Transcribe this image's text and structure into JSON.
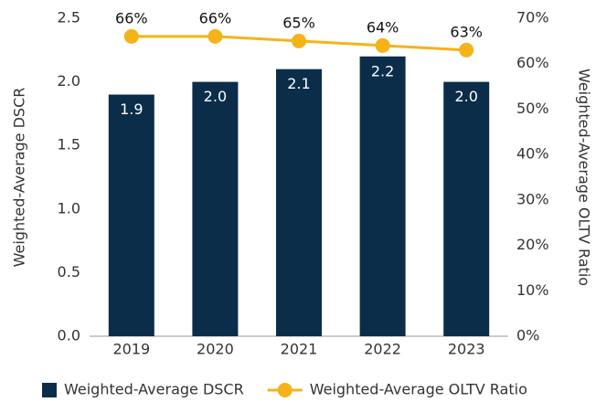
{
  "chart_data": {
    "type": "bar",
    "categories": [
      "2019",
      "2020",
      "2021",
      "2022",
      "2023"
    ],
    "ylabel": "Weighted-Average DSCR",
    "y2label": "Weighted-Average OLTV Ratio",
    "ylim": [
      0,
      2.5
    ],
    "yticks": [
      {
        "value": 0,
        "label": "0.0"
      },
      0.5,
      {
        "value": 1,
        "label": "1.0"
      },
      1.5,
      {
        "value": 2,
        "label": "2.0"
      },
      2.5
    ],
    "y2lim": [
      0,
      70
    ],
    "y2ticks": [
      {
        "value": 0,
        "label": "0%"
      },
      {
        "value": 10,
        "label": "10%"
      },
      {
        "value": 20,
        "label": "20%"
      },
      {
        "value": 30,
        "label": "30%"
      },
      {
        "value": 40,
        "label": "40%"
      },
      {
        "value": 50,
        "label": "50%"
      },
      {
        "value": 60,
        "label": "60%"
      },
      {
        "value": 70,
        "label": "70%"
      }
    ],
    "legend": "bottom",
    "series": [
      {
        "name": "Weighted-Average DSCR",
        "type": "bar",
        "color": "#0b2d4a",
        "values": [
          1.9,
          2.0,
          2.1,
          2.2,
          2.0
        ],
        "value_labels": [
          "1.9",
          "2.0",
          "2.1",
          "2.2",
          "2.0"
        ]
      },
      {
        "name": "Weighted-Average OLTV Ratio",
        "type": "line",
        "axis": "y2",
        "color": "#f5b31a",
        "values": [
          66,
          66,
          65,
          64,
          63
        ],
        "value_labels": [
          "66%",
          "66%",
          "65%",
          "64%",
          "63%"
        ]
      }
    ]
  }
}
